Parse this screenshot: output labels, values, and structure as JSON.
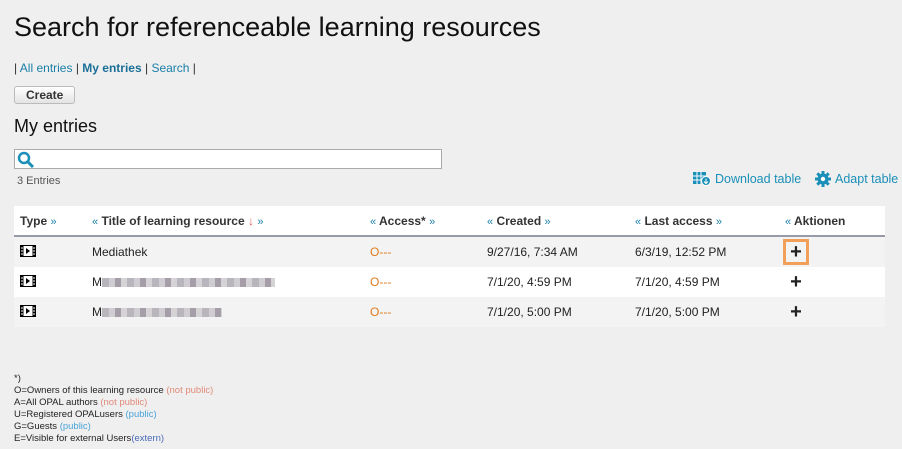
{
  "title": "Search for referenceable learning resources",
  "nav": [
    {
      "label": "All entries"
    },
    {
      "label": "My entries"
    },
    {
      "label": "Search"
    }
  ],
  "create_label": "Create",
  "section_title": "My entries",
  "search": {
    "value": "",
    "placeholder": ""
  },
  "entries_count": "3 Entries",
  "download_label": "Download table",
  "adapt_label": "Adapt table",
  "columns": {
    "type": "Type",
    "title": "Title of learning resource",
    "access": "Access*",
    "created": "Created",
    "last_access": "Last access",
    "actions": "Aktionen"
  },
  "rows": [
    {
      "title": "Mediathek",
      "blurred": false,
      "access": "O---",
      "created": "9/27/16, 7:34 AM",
      "last_access": "6/3/19, 12:52 PM"
    },
    {
      "title": "M",
      "blurred": true,
      "access": "O---",
      "created": "7/1/20, 4:59 PM",
      "last_access": "7/1/20, 4:59 PM"
    },
    {
      "title": "M",
      "blurred": true,
      "access": "O---",
      "created": "7/1/20, 5:00 PM",
      "last_access": "7/1/20, 5:00 PM"
    }
  ],
  "legend": {
    "head": "*)",
    "o": "O=Owners of this learning resource ",
    "o_note": "(not public)",
    "a": "A=All OPAL authors ",
    "a_note": "(not public)",
    "u": "U=Registered OPALusers ",
    "u_note": "(public)",
    "g": "G=Guests ",
    "g_note": "(public)",
    "e": "E=Visible for external Users",
    "e_note": "(extern)"
  },
  "colors": {
    "link": "#1a7fa8",
    "access": "#e07a1a",
    "focus": "#f0a058"
  }
}
